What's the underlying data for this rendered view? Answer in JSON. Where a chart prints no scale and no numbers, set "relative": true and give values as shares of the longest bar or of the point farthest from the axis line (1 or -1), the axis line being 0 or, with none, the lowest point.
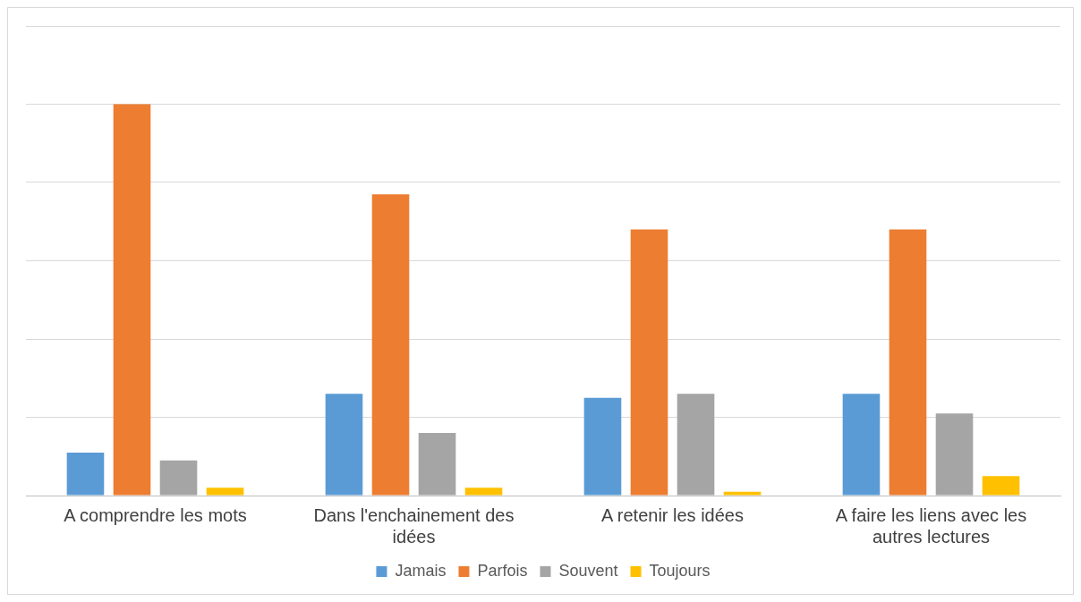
{
  "chart_data": {
    "type": "bar",
    "relative": true,
    "grid": "y",
    "legend": "bottom",
    "categories": [
      "A comprendre les mots",
      "Dans l'enchainement des idées",
      "A retenir les idées",
      "A faire les liens avec les autres lectures"
    ],
    "series": [
      {
        "name": "Jamais",
        "color": "#5b9bd5",
        "values": [
          0.11,
          0.26,
          0.25,
          0.26
        ]
      },
      {
        "name": "Parfois",
        "color": "#ed7d31",
        "values": [
          1,
          0.77,
          0.68,
          0.68
        ]
      },
      {
        "name": "Souvent",
        "color": "#a5a5a5",
        "values": [
          0.09,
          0.16,
          0.26,
          0.21
        ]
      },
      {
        "name": "Toujours",
        "color": "#ffc000",
        "values": [
          0.02,
          0.02,
          0.01,
          0.05
        ]
      }
    ]
  }
}
